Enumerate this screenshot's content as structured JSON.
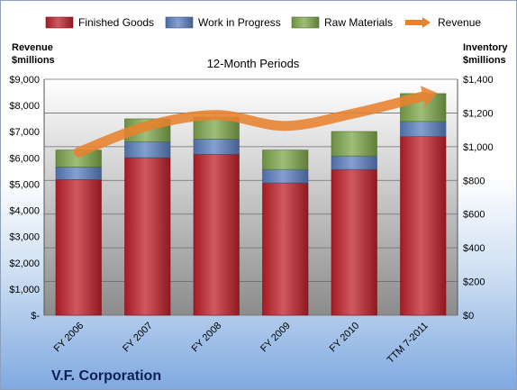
{
  "chart_data": {
    "type": "bar",
    "stacked": true,
    "subtitle": "12-Month Periods",
    "footer_title": "V.F. Corporation",
    "categories": [
      "FY 2006",
      "FY 2007",
      "FY 2008",
      "FY 2009",
      "FY 2010",
      "TTM 7-2011"
    ],
    "series": [
      {
        "name": "Finished Goods",
        "axis": "right",
        "color": "#c0202a",
        "values": [
          805,
          935,
          955,
          785,
          865,
          1060
        ]
      },
      {
        "name": "Work in Progress",
        "axis": "right",
        "color": "#5b80c0",
        "values": [
          75,
          95,
          90,
          80,
          80,
          90
        ]
      },
      {
        "name": "Raw Materials",
        "axis": "right",
        "color": "#7ea84c",
        "values": [
          100,
          135,
          130,
          115,
          145,
          165
        ]
      },
      {
        "name": "Revenue",
        "axis": "left",
        "type": "line",
        "color": "#e8822e",
        "values": [
          6220,
          7220,
          7640,
          7220,
          7700,
          8350
        ]
      }
    ],
    "left_axis": {
      "title_lines": [
        "Revenue",
        "$millions"
      ],
      "ylim": [
        0,
        9000
      ],
      "ticks": [
        {
          "value": 0,
          "label": "$-"
        },
        {
          "value": 1000,
          "label": "$1,000"
        },
        {
          "value": 2000,
          "label": "$2,000"
        },
        {
          "value": 3000,
          "label": "$3,000"
        },
        {
          "value": 4000,
          "label": "$4,000"
        },
        {
          "value": 5000,
          "label": "$5,000"
        },
        {
          "value": 6000,
          "label": "$6,000"
        },
        {
          "value": 7000,
          "label": "$7,000"
        },
        {
          "value": 8000,
          "label": "$8,000"
        },
        {
          "value": 9000,
          "label": "$9,000"
        }
      ]
    },
    "right_axis": {
      "title_lines": [
        "Inventory",
        "$millions"
      ],
      "ylim": [
        0,
        1400
      ],
      "ticks": [
        {
          "value": 0,
          "label": "$0"
        },
        {
          "value": 200,
          "label": "$200"
        },
        {
          "value": 400,
          "label": "$400"
        },
        {
          "value": 600,
          "label": "$600"
        },
        {
          "value": 800,
          "label": "$800"
        },
        {
          "value": 1000,
          "label": "$1,000"
        },
        {
          "value": 1200,
          "label": "$1,200"
        },
        {
          "value": 1400,
          "label": "$1,400"
        }
      ]
    },
    "grid": true,
    "legend": "top"
  }
}
